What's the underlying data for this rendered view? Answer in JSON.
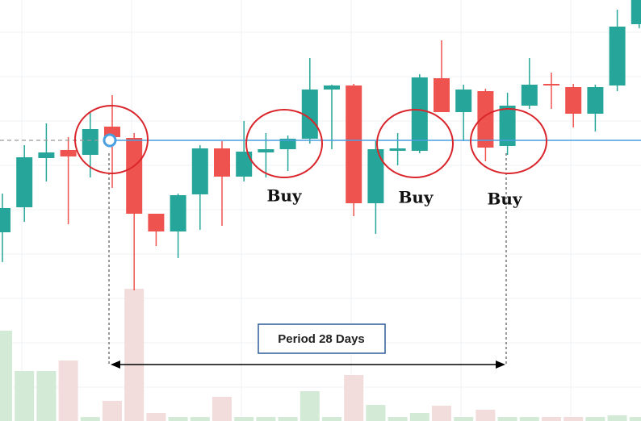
{
  "chart_data": {
    "type": "candlestick",
    "open": [
      234,
      265,
      326,
      336,
      330,
      365,
      351,
      257,
      235,
      281,
      338,
      303,
      333,
      337,
      350,
      411,
      416,
      270,
      335,
      335,
      425,
      383,
      409,
      341,
      391,
      418,
      414,
      381,
      416,
      492
    ],
    "high": [
      282,
      342,
      369,
      352,
      382,
      404,
      357,
      257,
      282,
      342,
      347,
      372,
      357,
      354,
      450,
      417,
      418,
      347,
      357,
      430,
      472,
      417,
      412,
      407,
      450,
      432,
      418,
      417,
      510,
      522
    ],
    "low": [
      197,
      247,
      297,
      244,
      302,
      289,
      162,
      217,
      202,
      237,
      242,
      297,
      302,
      310,
      344,
      337,
      254,
      232,
      317,
      332,
      383,
      347,
      322,
      330,
      387,
      387,
      364,
      359,
      409,
      487
    ],
    "close": [
      264,
      327,
      333,
      328,
      362,
      352,
      257,
      235,
      280,
      338,
      303,
      334,
      337,
      350,
      411,
      416,
      270,
      337,
      338,
      426,
      383,
      411,
      339,
      391,
      417,
      416,
      381,
      414,
      489,
      522
    ],
    "volume": [
      112,
      62,
      62,
      75,
      5,
      25,
      164,
      10,
      5,
      5,
      30,
      5,
      5,
      5,
      37,
      5,
      57,
      20,
      5,
      10,
      19,
      5,
      14,
      5,
      5,
      5,
      5,
      5,
      7,
      5
    ],
    "ylim": [
      0,
      522
    ],
    "level": 348,
    "up_color": "#26a69a",
    "down_color": "#ef5350",
    "volume_up_color": "#d3ead6",
    "volume_down_color": "#f2dcdc",
    "level_color": "#4a9fe0",
    "annotations": [
      "Buy",
      "Buy",
      "Buy"
    ],
    "period_label": "Period 28 Days"
  }
}
